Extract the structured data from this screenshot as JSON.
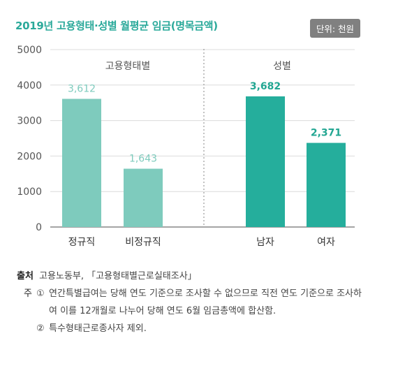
{
  "title": "2019년 고용형태·성별 월평균 임금(명목금액)",
  "unit_label": "단위: 천원",
  "colors": {
    "title": "#2aa99a",
    "employment_bar": "#7ecbbd",
    "employment_label": "#7ecbbd",
    "gender_bar": "#25ae9c",
    "gender_label": "#22a692",
    "axis": "#6f6f6f",
    "grid": "#dcdcdc"
  },
  "chart_data": {
    "type": "bar",
    "ylim": [
      0,
      5000
    ],
    "yticks": [
      0,
      1000,
      2000,
      3000,
      4000,
      5000
    ],
    "grid": true,
    "groups": [
      {
        "name": "고용형태별",
        "categories": [
          "정규직",
          "비정규직"
        ],
        "values": [
          3612,
          1643
        ],
        "value_labels": [
          "3,612",
          "1,643"
        ]
      },
      {
        "name": "성별",
        "categories": [
          "남자",
          "여자"
        ],
        "values": [
          3682,
          2371
        ],
        "value_labels": [
          "3,682",
          "2,371"
        ]
      }
    ]
  },
  "notes": {
    "source_heading": "출처",
    "source_text": "고용노동부, 「고용형태별근로실태조사」",
    "note_heading": "주",
    "items": [
      {
        "num": "①",
        "text": "연간특별급여는 당해 연도 기준으로 조사할 수 없으므로 직전 연도 기준으로 조사하여 이를 12개월로 나누어 당해 연도 6월 임금총액에 합산함."
      },
      {
        "num": "②",
        "text": "특수형태근로종사자 제외."
      }
    ]
  }
}
